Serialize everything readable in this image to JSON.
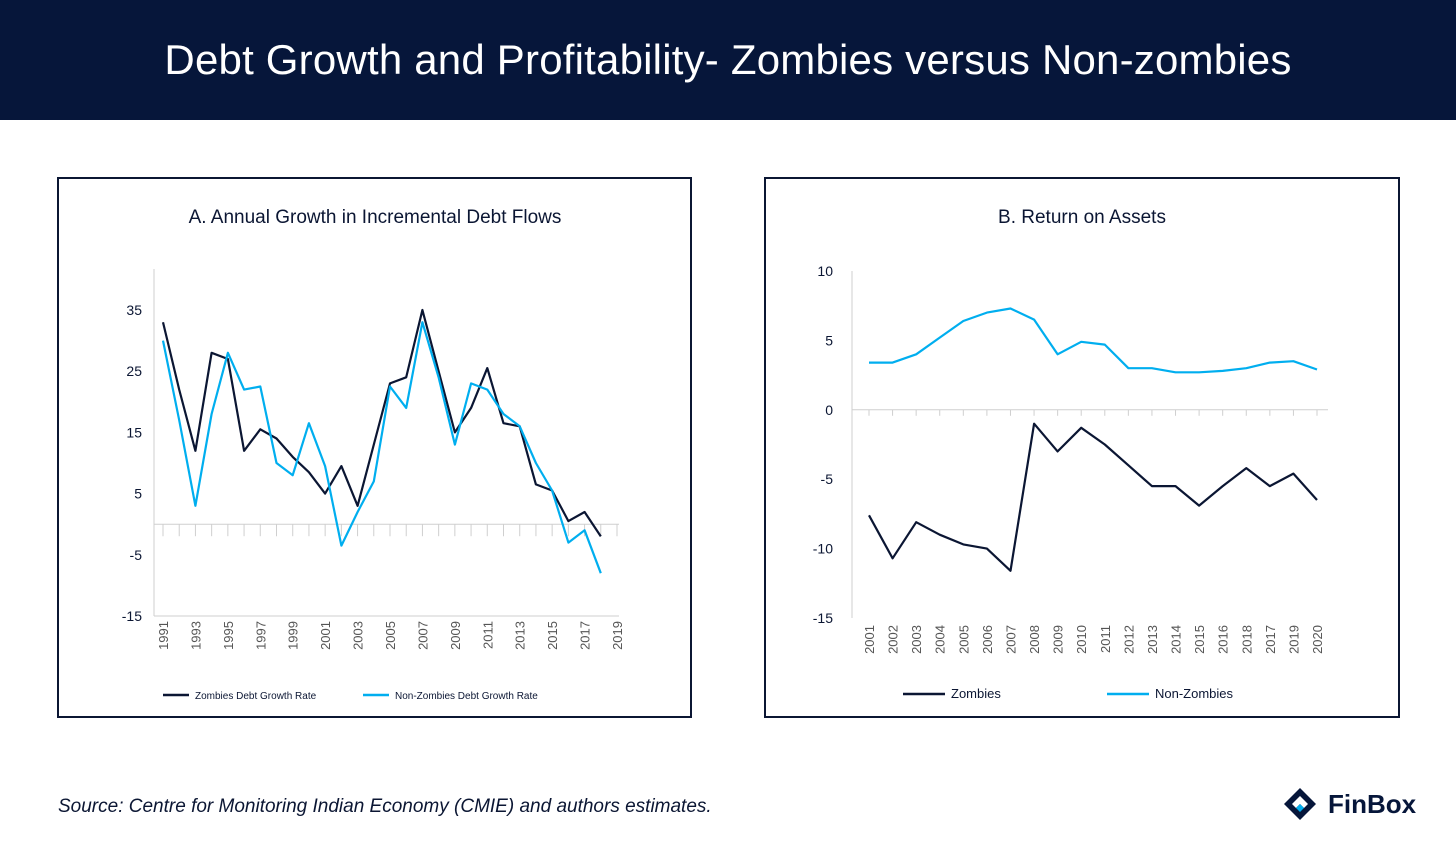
{
  "header": {
    "title": "Debt Growth and Profitability- Zombies versus Non-zombies"
  },
  "footer": {
    "source": "Source: Centre for Monitoring Indian Economy (CMIE) and authors estimates."
  },
  "brand": {
    "name": "FinBox",
    "logo_icon": "finbox-logo-icon",
    "logo_color": "#06163a"
  },
  "colors": {
    "dark": "#0b1633",
    "light": "#00aeef",
    "header_bg": "#06163a"
  },
  "chart_data": [
    {
      "type": "line",
      "title": "A. Annual Growth in Incremental Debt Flows",
      "xlabel": "",
      "ylabel": "",
      "ylim": [
        -15,
        35
      ],
      "yticks": [
        "35",
        "25",
        "15",
        "5",
        "-5",
        "-15"
      ],
      "x": [
        "1991",
        "1992",
        "1993",
        "1994",
        "1995",
        "1996",
        "1997",
        "1998",
        "1999",
        "2000",
        "2001",
        "2002",
        "2003",
        "2004",
        "2005",
        "2006",
        "2007",
        "2008",
        "2009",
        "2010",
        "2011",
        "2012",
        "2013",
        "2014",
        "2015",
        "2016",
        "2017",
        "2018",
        "2019"
      ],
      "xtick_labels": [
        "1991",
        "1993",
        "1995",
        "1997",
        "1999",
        "2001",
        "2003",
        "2005",
        "2007",
        "2009",
        "2011",
        "2013",
        "2015",
        "2017",
        "2019"
      ],
      "legend": "bottom",
      "series": [
        {
          "name": "Zombies Debt Growth Rate",
          "color": "#0b1633",
          "values": [
            33,
            22,
            12,
            28,
            27,
            12,
            15.5,
            14,
            11,
            8.5,
            5,
            9.5,
            3,
            13,
            23,
            24,
            35,
            25,
            15,
            19,
            25.5,
            16.5,
            16,
            6.5,
            5.5,
            0.5,
            2,
            -2,
            null
          ]
        },
        {
          "name": "Non-Zombies Debt Growth Rate",
          "color": "#00aeef",
          "values": [
            30,
            17,
            3,
            18,
            28,
            22,
            22.5,
            10,
            8,
            16.5,
            9.5,
            -3.5,
            2,
            7,
            22.5,
            19,
            33,
            24,
            13,
            23,
            22,
            18,
            16,
            10,
            5.5,
            -3,
            -1,
            -8,
            null
          ]
        }
      ]
    },
    {
      "type": "line",
      "title": "B. Return on Assets",
      "xlabel": "",
      "ylabel": "",
      "ylim": [
        -15,
        10
      ],
      "yticks": [
        "10",
        "5",
        "0",
        "-5",
        "-10",
        "-15"
      ],
      "x": [
        "2001",
        "2002",
        "2003",
        "2004",
        "2005",
        "2006",
        "2007",
        "2008",
        "2009",
        "2010",
        "2011",
        "2012",
        "2013",
        "2014",
        "2015",
        "2016",
        "2018",
        "2017",
        "2019",
        "2020"
      ],
      "legend": "bottom",
      "series": [
        {
          "name": "Zombies",
          "color": "#0b1633",
          "values": [
            -7.6,
            -10.7,
            -8.1,
            -9.0,
            -9.7,
            -10.0,
            -11.6,
            -1.0,
            -3.0,
            -1.3,
            -2.5,
            -4.0,
            -5.5,
            -5.5,
            -6.9,
            -5.5,
            -4.2,
            -5.5,
            -4.6,
            -6.5
          ]
        },
        {
          "name": "Non-Zombies",
          "color": "#00aeef",
          "values": [
            3.4,
            3.4,
            4.0,
            5.2,
            6.4,
            7.0,
            7.3,
            6.5,
            4.0,
            4.9,
            4.7,
            3.0,
            3.0,
            2.7,
            2.7,
            2.8,
            3.0,
            3.4,
            3.5,
            2.9
          ]
        }
      ]
    }
  ]
}
